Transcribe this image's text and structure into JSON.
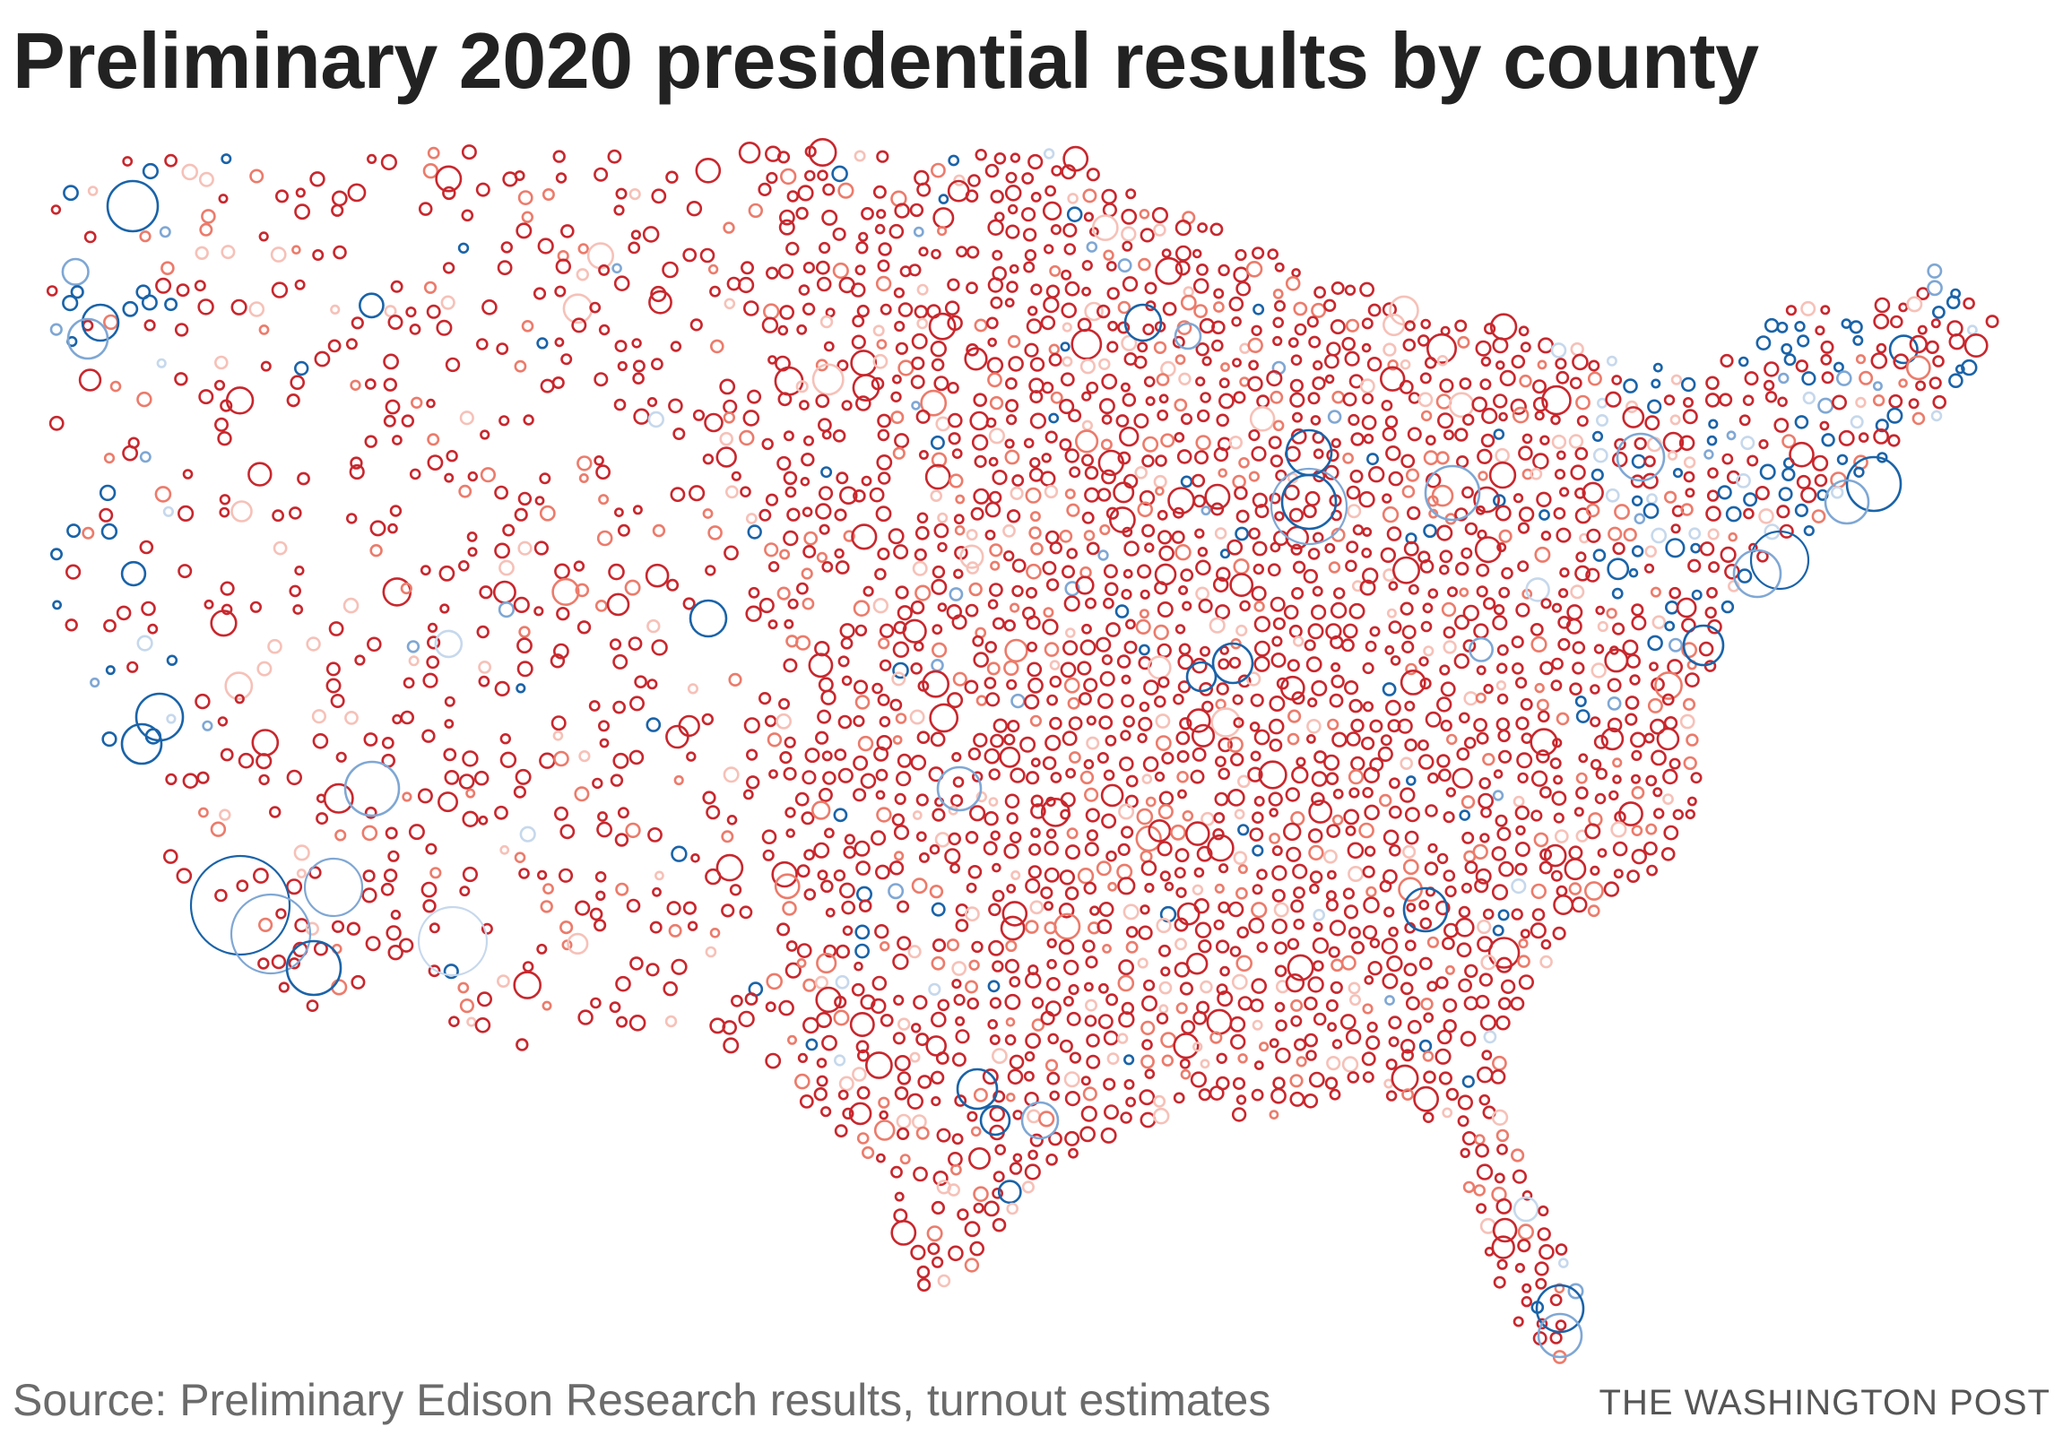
{
  "title": "Preliminary 2020 presidential results by county",
  "source": "Source: Preliminary Edison Research results, turnout estimates",
  "credit": "THE WASHINGTON POST",
  "colors": {
    "dem_strong": "#1a63a8",
    "dem_lean": "#7fa7d4",
    "dem_slight": "#c6d8ec",
    "rep_strong": "#c8272d",
    "rep_lean": "#ec7b6b",
    "rep_slight": "#f6c1b8"
  },
  "map": {
    "type": "proportional-symbol",
    "symbol": "circle",
    "region": "contiguous United States counties"
  }
}
